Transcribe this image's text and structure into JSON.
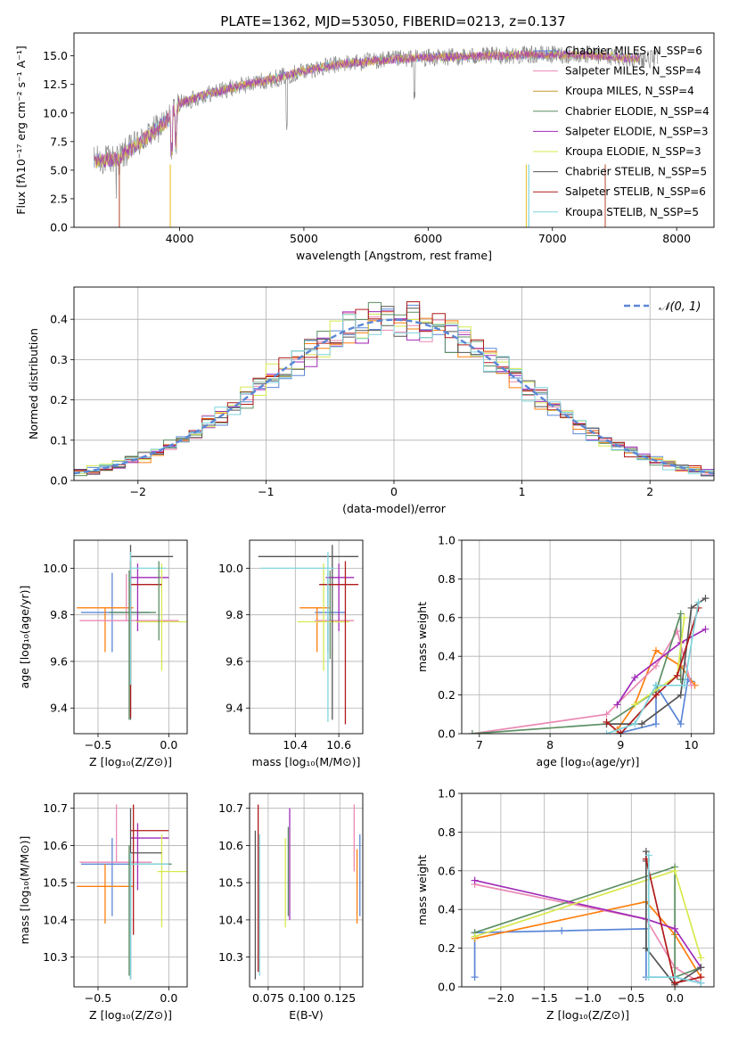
{
  "figure_title": "PLATE=1362, MJD=53050, FIBERID=0213, z=0.137",
  "colors": {
    "chabrier_miles": "#5b87d6",
    "salpeter_miles": "#ff7f0e",
    "kroupa_miles": "#e9c53d",
    "chabrier_elodie": "#5c8f63",
    "salpeter_elodie": "#a02bb8",
    "kroupa_elodie": "#d7e94f",
    "chabrier_stelib": "#555555",
    "salpeter_stelib": "#b01a1a",
    "kroupa_stelib": "#7fd4dd",
    "pink": "#ea8ab4"
  },
  "chart_data": [
    {
      "id": "spectrum",
      "type": "line",
      "title": "PLATE=1362, MJD=53050, FIBERID=0213, z=0.137",
      "xlabel": "wavelength [Angstrom, rest frame]",
      "ylabel": "Flux [fλ10⁻¹⁷ erg cm⁻² s⁻¹ A⁻¹]",
      "xlim": [
        3150,
        8300
      ],
      "ylim": [
        0,
        17
      ],
      "xticks": [
        4000,
        5000,
        6000,
        7000,
        8000
      ],
      "yticks": [
        0.0,
        2.5,
        5.0,
        7.5,
        10.0,
        12.5,
        15.0
      ],
      "grid": false,
      "legend_position": "top-right",
      "legend": [
        {
          "label": "Chabrier MILES, N_SSP=6",
          "color": "#5b87d6"
        },
        {
          "label": "Salpeter MILES, N_SSP=4",
          "color": "#ea8ab4"
        },
        {
          "label": "Kroupa MILES, N_SSP=4",
          "color": "#c59a2c"
        },
        {
          "label": "Chabrier ELODIE, N_SSP=4",
          "color": "#5c8f63"
        },
        {
          "label": "Salpeter ELODIE, N_SSP=3",
          "color": "#a02bb8"
        },
        {
          "label": "Kroupa ELODIE, N_SSP=3",
          "color": "#d7e94f"
        },
        {
          "label": "Chabrier STELIB, N_SSP=5",
          "color": "#555555"
        },
        {
          "label": "Salpeter STELIB, N_SSP=6",
          "color": "#b01a1a"
        },
        {
          "label": "Kroupa STELIB, N_SSP=5",
          "color": "#7fd4dd"
        }
      ],
      "continuum_x": [
        3300,
        3500,
        3700,
        3900,
        4000,
        4200,
        4500,
        4800,
        5000,
        5300,
        5600,
        5900,
        6200,
        6500,
        6800,
        7000,
        7200,
        7400,
        7600,
        7850
      ],
      "continuum_y": [
        5.8,
        6.0,
        7.6,
        9.3,
        10.8,
        11.6,
        12.4,
        13.1,
        13.7,
        14.3,
        14.6,
        14.8,
        14.9,
        15.0,
        15.1,
        15.1,
        15.1,
        15.0,
        14.8,
        14.7
      ]
    },
    {
      "id": "residuals",
      "type": "histogram",
      "xlabel": "(data-model)/error",
      "ylabel": "Normed distribution",
      "xlim": [
        -2.5,
        2.5
      ],
      "ylim": [
        0,
        0.48
      ],
      "xticks": [
        -2,
        -1,
        0,
        1,
        2
      ],
      "yticks": [
        0.0,
        0.1,
        0.2,
        0.3,
        0.4
      ],
      "grid": true,
      "legend_position": "top-right",
      "legend": [
        {
          "label": "𝒩(0, 1)",
          "color": "#5b87d6",
          "style": "dashed"
        }
      ],
      "bin_width": 0.1,
      "bin_start": -2.5
    },
    {
      "id": "age_vs_Z",
      "type": "errorbar",
      "xlabel": "Z [log₁₀(Z/Z⊙)]",
      "ylabel": "age  [log₁₀(age/yr)]",
      "xlim": [
        -0.67,
        0.13
      ],
      "ylim": [
        9.29,
        10.12
      ],
      "xticks": [
        -0.5,
        0.0
      ],
      "yticks": [
        9.4,
        9.6,
        9.8,
        10.0
      ],
      "grid": true,
      "points": [
        {
          "model": "chabrier_miles",
          "x": -0.4,
          "xerr": [
            0.22,
            0.27
          ],
          "y": 9.81,
          "yerr": [
            0.17,
            0.17
          ]
        },
        {
          "model": "salpeter_miles",
          "x": -0.45,
          "xerr": [
            0.2,
            0.2
          ],
          "y": 9.83,
          "yerr": [
            0.19,
            0.0
          ]
        },
        {
          "model": "pink",
          "x": -0.3,
          "xerr": [
            0.33,
            0.37
          ],
          "y": 9.775,
          "yerr": [
            0.0,
            0.2
          ]
        },
        {
          "model": "chabrier_elodie",
          "x": -0.28,
          "xerr": [
            0.14,
            0.19
          ],
          "y": 9.81,
          "yerr": [
            0.46,
            0.18
          ]
        },
        {
          "model": "salpeter_elodie",
          "x": -0.22,
          "xerr": [
            0.05,
            0.22
          ],
          "y": 9.96,
          "yerr": [
            0.23,
            0.06
          ]
        },
        {
          "model": "kroupa_elodie",
          "x": -0.05,
          "xerr": [
            0.18,
            0.22
          ],
          "y": 9.77,
          "yerr": [
            0.21,
            0.25
          ]
        },
        {
          "model": "chabrier_stelib",
          "x": -0.27,
          "xerr": [
            0.0,
            0.3
          ],
          "y": 10.05,
          "yerr": [
            0.7,
            0.05
          ]
        },
        {
          "model": "salpeter_stelib",
          "x": -0.27,
          "xerr": [
            0.0,
            0.22
          ],
          "y": 9.93,
          "yerr": [
            0.57,
            0.1
          ]
        },
        {
          "model": "kroupa_stelib",
          "x": -0.27,
          "xerr": [
            0.0,
            0.25
          ],
          "y": 10.0,
          "yerr": [
            0.5,
            0.07
          ]
        },
        {
          "model": "chabrier_elodie",
          "x": -0.07,
          "xerr": [
            0.0,
            0.0
          ],
          "y": 9.85,
          "yerr": [
            0.16,
            0.18
          ]
        }
      ]
    },
    {
      "id": "age_vs_mass",
      "type": "errorbar",
      "xlabel": "mass [log₁₀(M/M⊙)]",
      "ylabel": "",
      "xlim": [
        10.19,
        10.71
      ],
      "ylim": [
        9.29,
        10.12
      ],
      "xticks": [
        10.4,
        10.6
      ],
      "yticks": [
        9.4,
        9.6,
        9.8,
        10.0
      ],
      "grid": true,
      "points": [
        {
          "model": "chabrier_miles",
          "x": 10.55,
          "xerr": [
            0.06,
            0.08
          ],
          "y": 9.81,
          "yerr": [
            0.17,
            0.17
          ]
        },
        {
          "model": "salpeter_miles",
          "x": 10.5,
          "xerr": [
            0.08,
            0.06
          ],
          "y": 9.83,
          "yerr": [
            0.19,
            0.0
          ]
        },
        {
          "model": "pink",
          "x": 10.6,
          "xerr": [
            0.11,
            0.07
          ],
          "y": 9.775,
          "yerr": [
            0.0,
            0.2
          ]
        },
        {
          "model": "chabrier_elodie",
          "x": 10.56,
          "xerr": [
            0.0,
            0.0
          ],
          "y": 9.81,
          "yerr": [
            0.2,
            0.18
          ]
        },
        {
          "model": "salpeter_elodie",
          "x": 10.6,
          "xerr": [
            0.06,
            0.07
          ],
          "y": 9.96,
          "yerr": [
            0.23,
            0.06
          ]
        },
        {
          "model": "kroupa_elodie",
          "x": 10.53,
          "xerr": [
            0.12,
            0.12
          ],
          "y": 9.77,
          "yerr": [
            0.21,
            0.25
          ]
        },
        {
          "model": "chabrier_stelib",
          "x": 10.57,
          "xerr": [
            0.34,
            0.12
          ],
          "y": 10.05,
          "yerr": [
            0.7,
            0.05
          ]
        },
        {
          "model": "salpeter_stelib",
          "x": 10.63,
          "xerr": [
            0.12,
            0.06
          ],
          "y": 9.93,
          "yerr": [
            0.6,
            0.1
          ]
        },
        {
          "model": "kroupa_stelib",
          "x": 10.55,
          "xerr": [
            0.31,
            0.03
          ],
          "y": 10.0,
          "yerr": [
            0.66,
            0.07
          ]
        }
      ]
    },
    {
      "id": "weight_vs_age",
      "type": "line",
      "xlabel": "age  [log₁₀(age/yr)]",
      "ylabel": "mass weight",
      "xlim": [
        6.75,
        10.32
      ],
      "ylim": [
        0,
        1.0
      ],
      "xticks": [
        7,
        8,
        9,
        10
      ],
      "yticks": [
        0.0,
        0.2,
        0.4,
        0.6,
        0.8,
        1.0
      ],
      "grid": true,
      "series": [
        {
          "model": "chabrier_miles",
          "x": [
            8.95,
            9.5,
            9.5,
            9.85,
            9.95,
            10.0
          ],
          "y": [
            0.0,
            0.05,
            0.25,
            0.05,
            0.28,
            0.27
          ]
        },
        {
          "model": "salpeter_miles",
          "x": [
            8.95,
            9.2,
            9.5,
            9.85,
            10.05
          ],
          "y": [
            0.02,
            0.15,
            0.43,
            0.35,
            0.25
          ]
        },
        {
          "model": "pink",
          "x": [
            6.9,
            8.8,
            9.5,
            9.8,
            10.0
          ],
          "y": [
            0.0,
            0.1,
            0.35,
            0.53,
            0.25
          ]
        },
        {
          "model": "chabrier_elodie",
          "x": [
            6.9,
            8.8,
            9.5,
            9.85,
            9.85
          ],
          "y": [
            0.0,
            0.05,
            0.22,
            0.62,
            0.28
          ]
        },
        {
          "model": "salpeter_elodie",
          "x": [
            8.95,
            9.2,
            9.85,
            10.2
          ],
          "y": [
            0.15,
            0.29,
            0.47,
            0.54
          ]
        },
        {
          "model": "kroupa_elodie",
          "x": [
            9.2,
            9.8,
            9.9
          ],
          "y": [
            0.15,
            0.3,
            0.6
          ]
        },
        {
          "model": "chabrier_stelib",
          "x": [
            8.8,
            9.3,
            9.85,
            10.0,
            10.2
          ],
          "y": [
            0.05,
            0.05,
            0.2,
            0.65,
            0.7
          ]
        },
        {
          "model": "salpeter_stelib",
          "x": [
            8.8,
            9.0,
            9.5,
            9.8,
            10.1
          ],
          "y": [
            0.06,
            0.0,
            0.2,
            0.3,
            0.65
          ]
        },
        {
          "model": "kroupa_stelib",
          "x": [
            8.8,
            9.2,
            9.5,
            9.9,
            10.1
          ],
          "y": [
            0.0,
            0.05,
            0.25,
            0.25,
            0.68
          ]
        }
      ]
    },
    {
      "id": "mass_vs_Z",
      "type": "errorbar",
      "xlabel": "Z [log₁₀(Z/Z⊙)]",
      "ylabel": "mass [log₁₀(M/M⊙)]",
      "xlim": [
        -0.67,
        0.13
      ],
      "ylim": [
        10.22,
        10.74
      ],
      "xticks": [
        -0.5,
        0.0
      ],
      "yticks": [
        10.3,
        10.4,
        10.5,
        10.6,
        10.7
      ],
      "grid": true,
      "points": [
        {
          "model": "chabrier_miles",
          "x": -0.4,
          "xerr": [
            0.22,
            0.27
          ],
          "y": 10.55,
          "yerr": [
            0.14,
            0.07
          ]
        },
        {
          "model": "salpeter_miles",
          "x": -0.45,
          "xerr": [
            0.2,
            0.2
          ],
          "y": 10.49,
          "yerr": [
            0.1,
            0.06
          ]
        },
        {
          "model": "pink",
          "x": -0.37,
          "xerr": [
            0.26,
            0.25
          ],
          "y": 10.555,
          "yerr": [
            0.0,
            0.155
          ]
        },
        {
          "model": "chabrier_elodie",
          "x": -0.28,
          "xerr": [
            0.0,
            0.3
          ],
          "y": 10.55,
          "yerr": [
            0.3,
            0.05
          ]
        },
        {
          "model": "salpeter_elodie",
          "x": -0.22,
          "xerr": [
            0.05,
            0.22
          ],
          "y": 10.62,
          "yerr": [
            0.14,
            0.04
          ]
        },
        {
          "model": "kroupa_elodie",
          "x": -0.05,
          "xerr": [
            0.03,
            0.19
          ],
          "y": 10.53,
          "yerr": [
            0.15,
            0.1
          ]
        },
        {
          "model": "chabrier_stelib",
          "x": -0.27,
          "xerr": [
            0.0,
            0.22
          ],
          "y": 10.58,
          "yerr": [
            0.34,
            0.12
          ]
        },
        {
          "model": "salpeter_stelib",
          "x": -0.25,
          "xerr": [
            0.02,
            0.25
          ],
          "y": 10.64,
          "yerr": [
            0.28,
            0.07
          ]
        },
        {
          "model": "kroupa_stelib",
          "x": -0.27,
          "xerr": [
            0.0,
            0.27
          ],
          "y": 10.55,
          "yerr": [
            0.31,
            0.03
          ]
        }
      ]
    },
    {
      "id": "mass_vs_ebv",
      "type": "errorbar",
      "xlabel": "E(B-V)",
      "ylabel": "",
      "xlim": [
        0.062,
        0.141
      ],
      "ylim": [
        10.22,
        10.74
      ],
      "xticks": [
        0.075,
        0.1,
        0.125
      ],
      "xticklabels": [
        "0.075",
        "0.100",
        "0.125"
      ],
      "yticks": [
        10.3,
        10.4,
        10.5,
        10.6,
        10.7
      ],
      "grid": true,
      "points": [
        {
          "model": "chabrier_stelib",
          "x": 0.066,
          "y": 10.44,
          "yerr": [
            0.2,
            0.2
          ]
        },
        {
          "model": "salpeter_stelib",
          "x": 0.068,
          "y": 10.5,
          "yerr": [
            0.24,
            0.21
          ]
        },
        {
          "model": "kroupa_stelib",
          "x": 0.069,
          "y": 10.46,
          "yerr": [
            0.21,
            0.17
          ]
        },
        {
          "model": "kroupa_elodie",
          "x": 0.087,
          "y": 10.5,
          "yerr": [
            0.12,
            0.12
          ]
        },
        {
          "model": "salpeter_elodie",
          "x": 0.09,
          "y": 10.58,
          "yerr": [
            0.18,
            0.12
          ]
        },
        {
          "model": "chabrier_elodie",
          "x": 0.089,
          "y": 10.55,
          "yerr": [
            0.14,
            0.1
          ]
        },
        {
          "model": "pink",
          "x": 0.135,
          "y": 10.62,
          "yerr": [
            0.09,
            0.09
          ]
        },
        {
          "model": "salpeter_miles",
          "x": 0.137,
          "y": 10.49,
          "yerr": [
            0.1,
            0.1
          ]
        },
        {
          "model": "chabrier_miles",
          "x": 0.139,
          "y": 10.52,
          "yerr": [
            0.11,
            0.11
          ]
        }
      ]
    },
    {
      "id": "weight_vs_Z",
      "type": "line",
      "xlabel": "Z [log₁₀(Z/Z⊙)]",
      "ylabel": "mass weight",
      "xlim": [
        -2.45,
        0.45
      ],
      "ylim": [
        0,
        1.0
      ],
      "xticks": [
        -2.0,
        -1.5,
        -1.0,
        -0.5,
        0.0
      ],
      "yticks": [
        0.0,
        0.2,
        0.4,
        0.6,
        0.8,
        1.0
      ],
      "grid": true,
      "series": [
        {
          "model": "chabrier_miles",
          "x": [
            -2.3,
            -2.3,
            -1.3,
            -0.33,
            -0.33,
            0.0,
            0.3
          ],
          "y": [
            0.05,
            0.28,
            0.29,
            0.3,
            0.05,
            0.05,
            0.02
          ]
        },
        {
          "model": "salpeter_miles",
          "x": [
            -2.3,
            -0.33,
            0.0,
            0.3
          ],
          "y": [
            0.25,
            0.44,
            0.27,
            0.05
          ]
        },
        {
          "model": "pink",
          "x": [
            -2.3,
            -0.33,
            0.0,
            0.3
          ],
          "y": [
            0.53,
            0.35,
            0.1,
            0.02
          ]
        },
        {
          "model": "chabrier_elodie",
          "x": [
            -2.3,
            0.0,
            0.0,
            0.3
          ],
          "y": [
            0.28,
            0.62,
            0.05,
            0.1
          ]
        },
        {
          "model": "salpeter_elodie",
          "x": [
            -2.3,
            -0.33,
            0.0,
            0.3
          ],
          "y": [
            0.55,
            0.35,
            0.3,
            0.1
          ]
        },
        {
          "model": "kroupa_elodie",
          "x": [
            -2.3,
            0.0,
            0.3
          ],
          "y": [
            0.26,
            0.6,
            0.15
          ]
        },
        {
          "model": "chabrier_stelib",
          "x": [
            -0.33,
            -0.33,
            -0.33,
            0.0,
            0.3
          ],
          "y": [
            0.7,
            0.65,
            0.2,
            0.01,
            0.1
          ]
        },
        {
          "model": "salpeter_stelib",
          "x": [
            -0.33,
            0.0,
            0.3
          ],
          "y": [
            0.66,
            0.02,
            0.05
          ]
        },
        {
          "model": "kroupa_stelib",
          "x": [
            -0.3,
            -0.3,
            0.0,
            0.3
          ],
          "y": [
            0.68,
            0.05,
            0.05,
            0.02
          ]
        }
      ]
    }
  ]
}
